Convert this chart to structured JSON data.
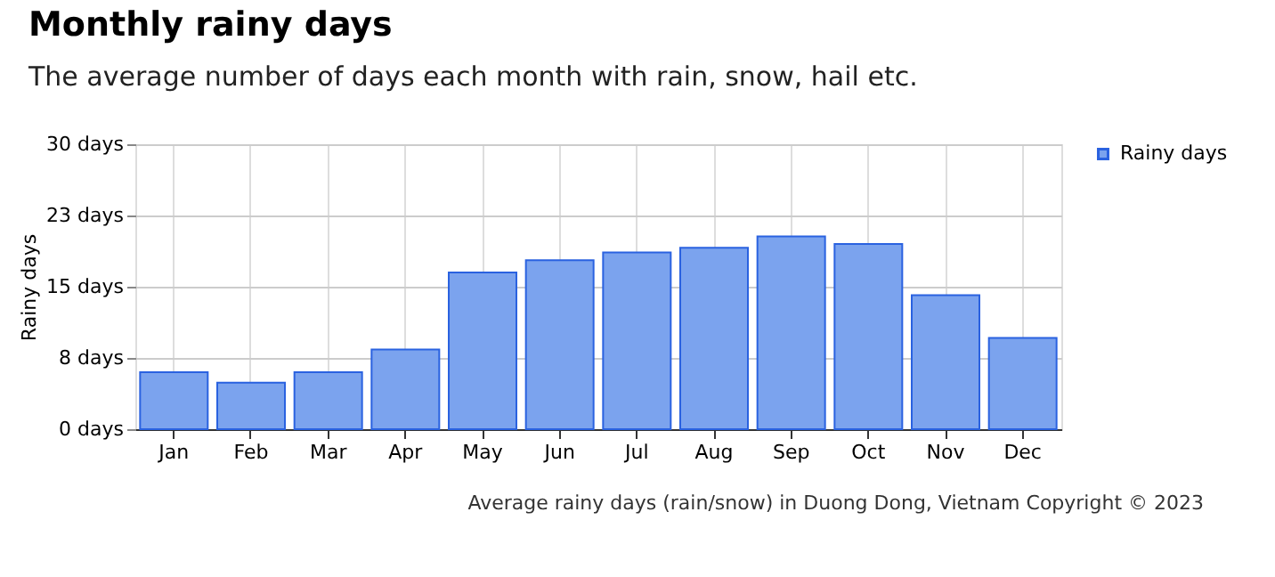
{
  "chart_data": {
    "type": "bar",
    "title": "Monthly rainy days",
    "subtitle": "The average number of days each month with rain, snow, hail etc.",
    "ylabel": "Rainy days",
    "categories": [
      "Jan",
      "Feb",
      "Mar",
      "Apr",
      "May",
      "Jun",
      "Jul",
      "Aug",
      "Sep",
      "Oct",
      "Nov",
      "Dec"
    ],
    "series": [
      {
        "name": "Rainy days",
        "color": "#7ba3ee",
        "values": [
          6.0,
          4.9,
          6.0,
          8.4,
          16.5,
          17.8,
          18.6,
          19.1,
          20.3,
          19.5,
          14.1,
          9.6
        ]
      }
    ],
    "ylim": [
      0,
      30
    ],
    "yticks": [
      {
        "value": 0,
        "label": "0 days"
      },
      {
        "value": 7.5,
        "label": "8 days"
      },
      {
        "value": 15,
        "label": "15 days"
      },
      {
        "value": 22.5,
        "label": "23 days"
      },
      {
        "value": 30,
        "label": "30 days"
      }
    ],
    "grid": true,
    "legend": "top right",
    "annotations": [
      "Average rainy days (rain/snow) in Duong Dong, Vietnam   Copyright © 2023"
    ]
  }
}
